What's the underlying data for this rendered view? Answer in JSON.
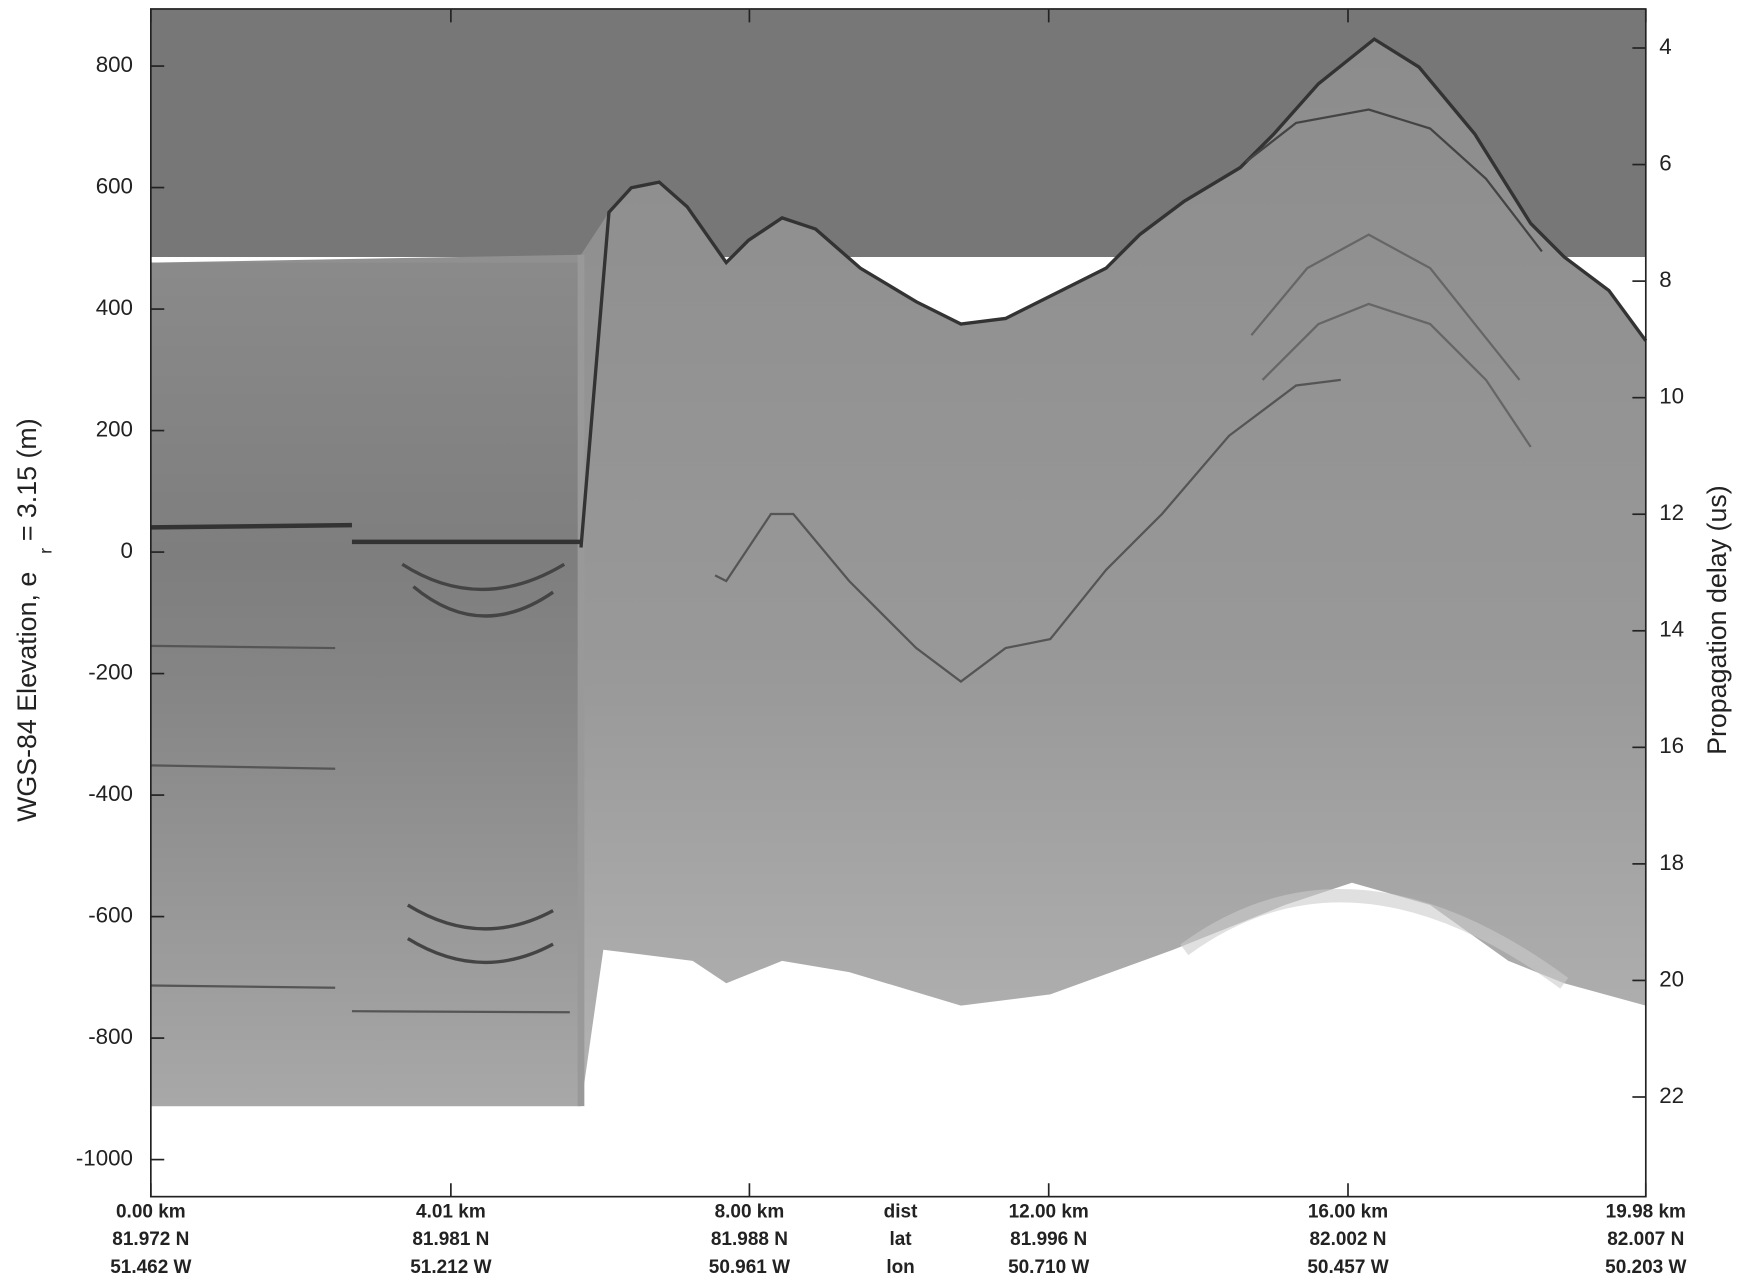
{
  "chart_data": {
    "type": "radargram",
    "ylabel": [
      "WGS-84 Elevation, e",
      "r",
      "= 3.15 (m)"
    ],
    "y2label": "Propagation delay (us)",
    "xlim": [
      0,
      19.98
    ],
    "xticks": [
      {
        "value": 0,
        "label": "0.00 km"
      },
      {
        "value": 4.01,
        "label": "4.01 km"
      },
      {
        "value": 8.0,
        "label": "8.00 km"
      },
      {
        "value": 12.0,
        "label": "12.00 km"
      },
      {
        "value": 16.0,
        "label": "16.00 km"
      },
      {
        "value": 19.98,
        "label": "19.98 km"
      }
    ],
    "lat": [
      "81.972 N",
      "81.981 N",
      "81.988 N",
      "81.996 N",
      "82.002 N",
      "82.007 N"
    ],
    "lon": [
      "51.462 W",
      "51.212 W",
      "50.961 W",
      "50.710 W",
      "50.457 W",
      "50.203 W"
    ],
    "row_labels": [
      "dist",
      "lat",
      "lon"
    ],
    "ylim": [
      -1061,
      894
    ],
    "yticks": [
      -1000,
      -800,
      -600,
      -400,
      -200,
      0,
      200,
      400,
      600,
      800
    ],
    "y2lim": [
      23.71,
      3.33
    ],
    "y2ticks": [
      4,
      6,
      8,
      10,
      12,
      14,
      16,
      18,
      20,
      22
    ],
    "colormap": "gray"
  }
}
